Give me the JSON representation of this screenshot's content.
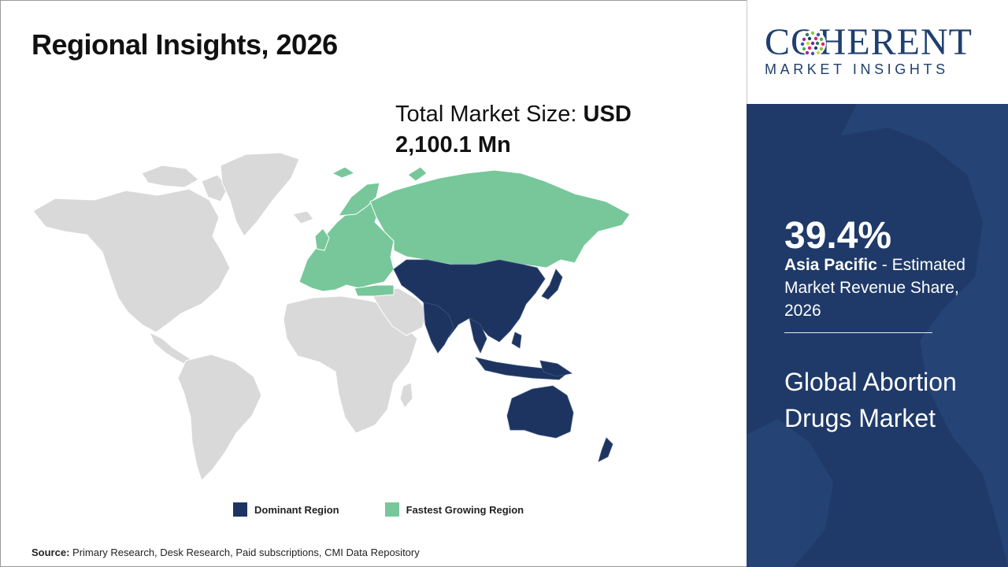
{
  "title": "Regional Insights, 2026",
  "total_market": {
    "label": "Total Market Size:",
    "value_line1": "USD",
    "value_line2": "2,100.1 Mn"
  },
  "legend": {
    "dominant": {
      "label": "Dominant Region",
      "color": "#1d3461"
    },
    "fastest": {
      "label": "Fastest Growing Region",
      "color": "#77c79a"
    }
  },
  "map_colors": {
    "default_land": "#d9d9d9",
    "border": "#ffffff"
  },
  "regions": {
    "dominant": "Asia Pacific",
    "fastest_growing": "Europe and Russia"
  },
  "source": {
    "label": "Source:",
    "text": "Primary Research, Desk Research, Paid subscriptions, CMI Data Repository"
  },
  "logo": {
    "top": "COHERENT",
    "bottom": "MARKET INSIGHTS",
    "color": "#1f3f6e"
  },
  "panel": {
    "background": "#1f3a68",
    "stat_value": "39.4%",
    "stat_region": "Asia Pacific",
    "stat_text": " - Estimated Market Revenue Share, 2026",
    "market_title": "Global Abortion Drugs Market"
  }
}
